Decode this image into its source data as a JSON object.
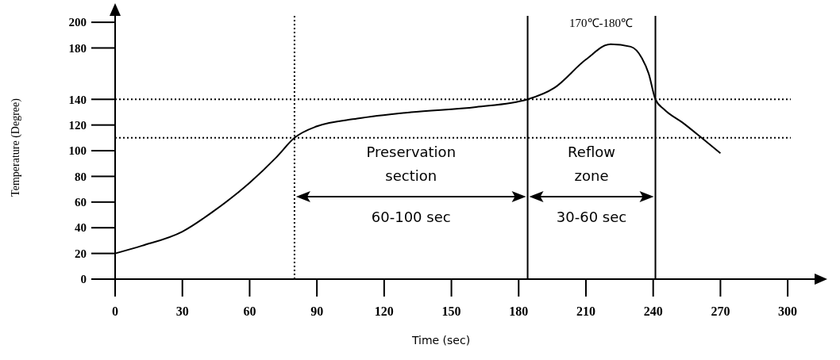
{
  "chart_data": {
    "type": "line",
    "xlabel": "Time (sec)",
    "ylabel": "Temperature (Degree)",
    "x": [
      0,
      12,
      30,
      44,
      60,
      72,
      80,
      90,
      108,
      132,
      161,
      184,
      196,
      210,
      221,
      230,
      235,
      238,
      241,
      245,
      253,
      263,
      270
    ],
    "series": [
      {
        "color": "#000000",
        "values": [
          20,
          26,
          37,
          53,
          75,
          95,
          110,
          119,
          125,
          130,
          134,
          140,
          149,
          171,
          183,
          181,
          172,
          160,
          140,
          132,
          122,
          108,
          98
        ]
      }
    ],
    "xlim": [
      0,
      312
    ],
    "xticks": [
      0,
      30,
      60,
      90,
      120,
      150,
      180,
      210,
      240,
      270,
      300
    ],
    "ylim": [
      0,
      205
    ],
    "yticks": [
      0,
      20,
      40,
      60,
      80,
      100,
      120,
      140,
      180,
      200
    ],
    "grid": false,
    "marker": "none",
    "line_style": "solid",
    "ref_lines": [
      {
        "axis": "y",
        "value": 140,
        "line_style": "dotted"
      },
      {
        "axis": "y",
        "value": 110,
        "line_style": "dotted"
      },
      {
        "axis": "x",
        "value": 80,
        "line_style": "dotted"
      },
      {
        "axis": "x",
        "value": 184,
        "line_style": "solid"
      },
      {
        "axis": "x",
        "value": 241,
        "line_style": "solid"
      }
    ],
    "annotations": [
      "170℃-180℃",
      "Preservation section",
      "60-100 sec",
      "Reflow zone",
      "30-60 sec"
    ]
  }
}
